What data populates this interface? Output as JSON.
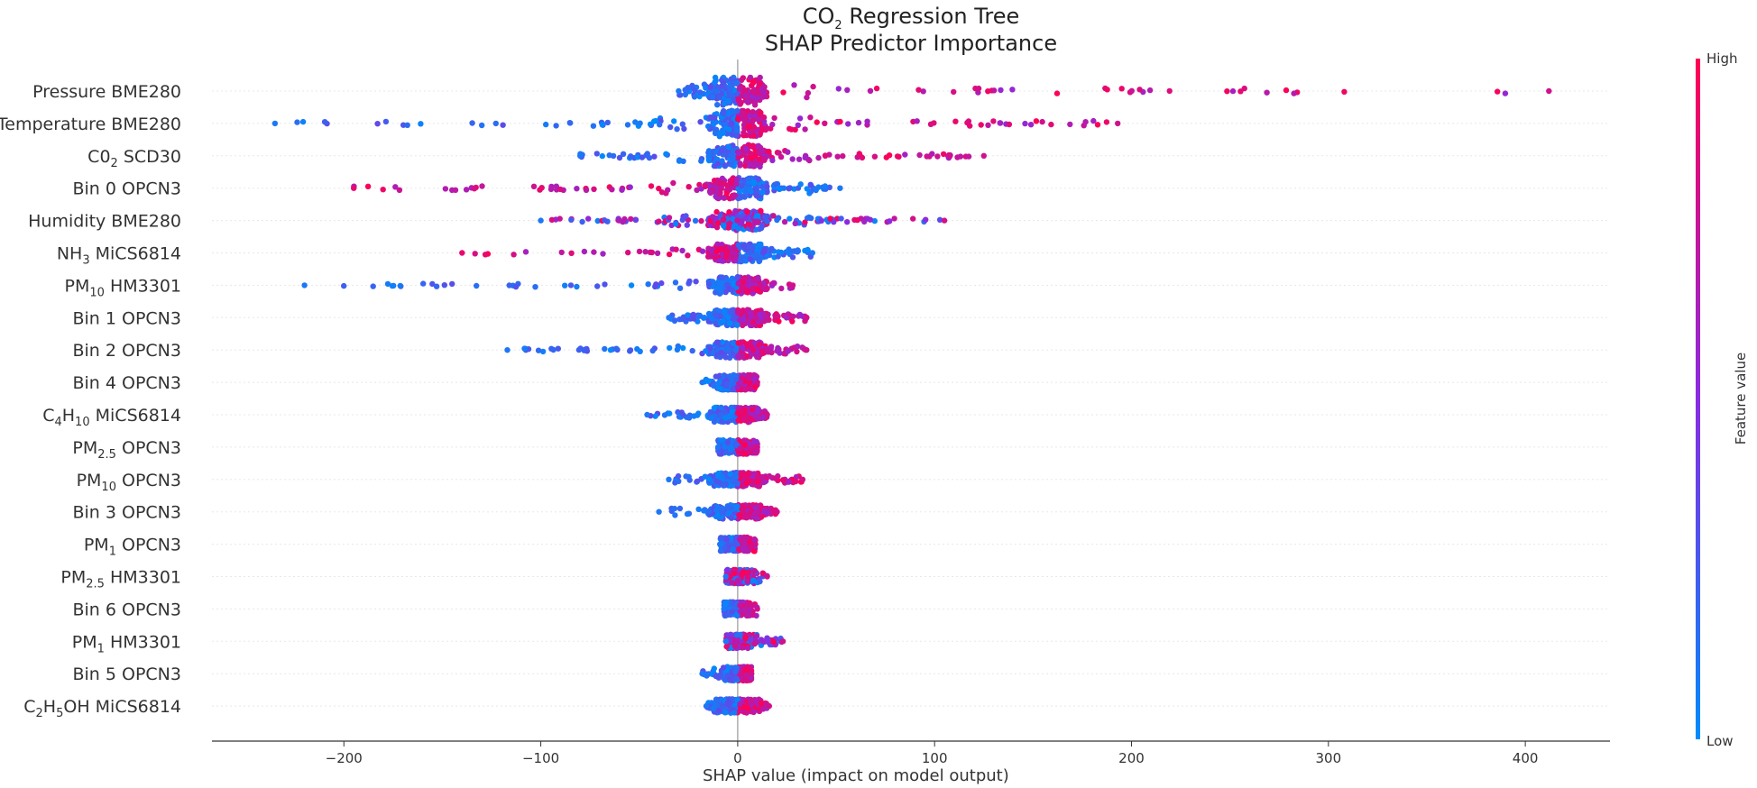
{
  "chart_data": {
    "type": "scatter",
    "title_line1_main": "CO",
    "title_line1_sub": "2",
    "title_line1_rest": " Regression Tree",
    "title_line2": "SHAP Predictor Importance",
    "xlabel": "SHAP value (impact on model output)",
    "xlim": [
      -267,
      443
    ],
    "xticks": [
      -200,
      -100,
      0,
      100,
      200,
      300,
      400
    ],
    "xtick_labels": [
      "−200",
      "−100",
      "0",
      "100",
      "200",
      "300",
      "400"
    ],
    "grid": false,
    "colorbar": {
      "title": "Feature value",
      "high_label": "High",
      "low_label": "Low",
      "low_color": "#008bfb",
      "high_color": "#ff0052",
      "mid_color": "#8a2be2"
    },
    "features": [
      {
        "parts": [
          [
            "Pressure BME280",
            ""
          ]
        ],
        "low": -30,
        "high": 412,
        "low_color_side": "neg",
        "spread": 0.9
      },
      {
        "parts": [
          [
            "Temperature BME280",
            ""
          ]
        ],
        "low": -235,
        "high": 193,
        "low_color_side": "neg",
        "spread": 0.8
      },
      {
        "parts": [
          [
            "C0",
            ""
          ],
          [
            "2",
            "sub"
          ],
          [
            " SCD30",
            ""
          ]
        ],
        "low": -80,
        "high": 125,
        "low_color_side": "neg",
        "spread": 0.6
      },
      {
        "parts": [
          [
            "Bin 0 OPCN3",
            ""
          ]
        ],
        "low": -195,
        "high": 52,
        "low_color_side": "pos",
        "spread": 0.55
      },
      {
        "parts": [
          [
            "Humidity BME280",
            ""
          ]
        ],
        "low": -100,
        "high": 105,
        "low_color_side": "mixed",
        "spread": 0.5
      },
      {
        "parts": [
          [
            "NH",
            ""
          ],
          [
            "3",
            "sub"
          ],
          [
            " MiCS6814",
            ""
          ]
        ],
        "low": -140,
        "high": 38,
        "low_color_side": "pos",
        "spread": 0.4
      },
      {
        "parts": [
          [
            "PM",
            ""
          ],
          [
            "10",
            "sub"
          ],
          [
            " HM3301",
            ""
          ]
        ],
        "low": -220,
        "high": 28,
        "low_color_side": "neg",
        "spread": 0.35
      },
      {
        "parts": [
          [
            "Bin 1 OPCN3",
            ""
          ]
        ],
        "low": -35,
        "high": 35,
        "low_color_side": "neg",
        "spread": 0.3
      },
      {
        "parts": [
          [
            "Bin 2 OPCN3",
            ""
          ]
        ],
        "low": -117,
        "high": 35,
        "low_color_side": "neg",
        "spread": 0.3
      },
      {
        "parts": [
          [
            "Bin 4 OPCN3",
            ""
          ]
        ],
        "low": -18,
        "high": 10,
        "low_color_side": "neg",
        "spread": 0.25
      },
      {
        "parts": [
          [
            "C",
            ""
          ],
          [
            "4",
            "sub"
          ],
          [
            "H",
            ""
          ],
          [
            "10",
            "sub"
          ],
          [
            " MiCS6814",
            ""
          ]
        ],
        "low": -46,
        "high": 15,
        "low_color_side": "neg",
        "spread": 0.25
      },
      {
        "parts": [
          [
            "PM",
            ""
          ],
          [
            "2.5",
            "sub"
          ],
          [
            " OPCN3",
            ""
          ]
        ],
        "low": -10,
        "high": 10,
        "low_color_side": "neg",
        "spread": 0.2
      },
      {
        "parts": [
          [
            "PM",
            ""
          ],
          [
            "10",
            "sub"
          ],
          [
            " OPCN3",
            ""
          ]
        ],
        "low": -35,
        "high": 33,
        "low_color_side": "neg",
        "spread": 0.2
      },
      {
        "parts": [
          [
            "Bin 3 OPCN3",
            ""
          ]
        ],
        "low": -40,
        "high": 20,
        "low_color_side": "neg",
        "spread": 0.2
      },
      {
        "parts": [
          [
            "PM",
            ""
          ],
          [
            "1",
            "sub"
          ],
          [
            " OPCN3",
            ""
          ]
        ],
        "low": -9,
        "high": 9,
        "low_color_side": "neg",
        "spread": 0.2
      },
      {
        "parts": [
          [
            "PM",
            ""
          ],
          [
            "2.5",
            "sub"
          ],
          [
            " HM3301",
            ""
          ]
        ],
        "low": -6,
        "high": 15,
        "low_color_side": "mixed",
        "spread": 0.2
      },
      {
        "parts": [
          [
            "Bin 6 OPCN3",
            ""
          ]
        ],
        "low": -7,
        "high": 10,
        "low_color_side": "neg",
        "spread": 0.2
      },
      {
        "parts": [
          [
            "PM",
            ""
          ],
          [
            "1",
            "sub"
          ],
          [
            " HM3301",
            ""
          ]
        ],
        "low": -6,
        "high": 23,
        "low_color_side": "mixed",
        "spread": 0.2
      },
      {
        "parts": [
          [
            "Bin 5 OPCN3",
            ""
          ]
        ],
        "low": -18,
        "high": 7,
        "low_color_side": "neg",
        "spread": 0.2
      },
      {
        "parts": [
          [
            "C",
            ""
          ],
          [
            "2",
            "sub"
          ],
          [
            "H",
            ""
          ],
          [
            "5",
            "sub"
          ],
          [
            "OH MiCS6814",
            ""
          ]
        ],
        "low": -16,
        "high": 16,
        "low_color_side": "neg",
        "spread": 0.2
      }
    ]
  }
}
